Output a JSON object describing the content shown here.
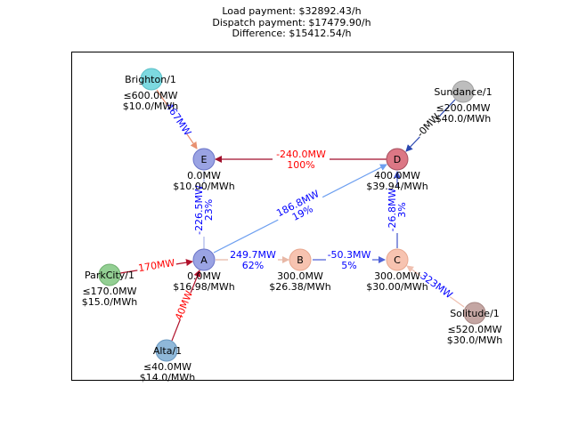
{
  "header": {
    "load_payment": "Load payment: $32892.43/h",
    "dispatch_payment": "Dispatch payment: $17479.90/h",
    "difference": "Difference: $15412.54/h"
  },
  "buses": {
    "A": {
      "label": "A",
      "mw": "0.0MW",
      "price": "$16.98/MWh",
      "color": "#9aa3e3"
    },
    "B": {
      "label": "B",
      "mw": "300.0MW",
      "price": "$26.38/MWh",
      "color": "#f7c3b0"
    },
    "C": {
      "label": "C",
      "mw": "300.0MW",
      "price": "$30.00/MWh",
      "color": "#f7c3b0"
    },
    "D": {
      "label": "D",
      "mw": "400.0MW",
      "price": "$39.94/MWh",
      "color": "#dc7785"
    },
    "E": {
      "label": "E",
      "mw": "0.0MW",
      "price": "$10.00/MWh",
      "color": "#9aa3e3"
    }
  },
  "generators": {
    "brighton": {
      "label": "Brighton/1",
      "cap": "≤600.0MW",
      "price": "$10.0/MWh",
      "color": "#7dd9e0"
    },
    "sundance": {
      "label": "Sundance/1",
      "cap": "≤200.0MW",
      "price": "$40.0/MWh",
      "color": "#bdbdbd"
    },
    "parkcity": {
      "label": "ParkCity/1",
      "cap": "≤170.0MW",
      "price": "$15.0/MWh",
      "color": "#93cf93"
    },
    "alta": {
      "label": "Alta/1",
      "cap": "≤40.0MW",
      "price": "$14.0/MWh",
      "color": "#8fb8d9"
    },
    "solitude": {
      "label": "Solitude/1",
      "cap": "≤520.0MW",
      "price": "$30.0/MWh",
      "color": "#c4a6a3"
    }
  },
  "lines": {
    "d_e": {
      "flow": "-240.0MW",
      "pct": "100%",
      "color": "#a00f2a",
      "text_color": "#ff0000"
    },
    "e_a": {
      "flow": "-226.5MW",
      "pct": "23%",
      "color": "#a8b4e8",
      "text_color": "#0000ff"
    },
    "a_d": {
      "flow": "186.8MW",
      "pct": "19%",
      "color": "#6d9ff0",
      "text_color": "#0000ff"
    },
    "a_b": {
      "flow": "249.7MW",
      "pct": "62%",
      "color": "#e8b8a6",
      "text_color": "#0000ff"
    },
    "b_c": {
      "flow": "-50.3MW",
      "pct": "5%",
      "color": "#4f62d8",
      "text_color": "#0000ff"
    },
    "c_d": {
      "flow": "-26.8MW",
      "pct": "3%",
      "color": "#4053c8",
      "text_color": "#0000ff"
    },
    "brighton_e": {
      "flow": "467MW",
      "color": "#e89070",
      "text_color": "#0000ff"
    },
    "sundance_d": {
      "flow": "-0MW",
      "color": "#2a47b0",
      "text_color": "#000000"
    },
    "parkcity_a": {
      "flow": "170MW",
      "color": "#b0102a",
      "text_color": "#ff0000"
    },
    "alta_a": {
      "flow": "40MW",
      "color": "#b0102a",
      "text_color": "#ff0000"
    },
    "solitude_c": {
      "flow": "323MW",
      "color": "#f0c0b0",
      "text_color": "#0000ff"
    }
  }
}
